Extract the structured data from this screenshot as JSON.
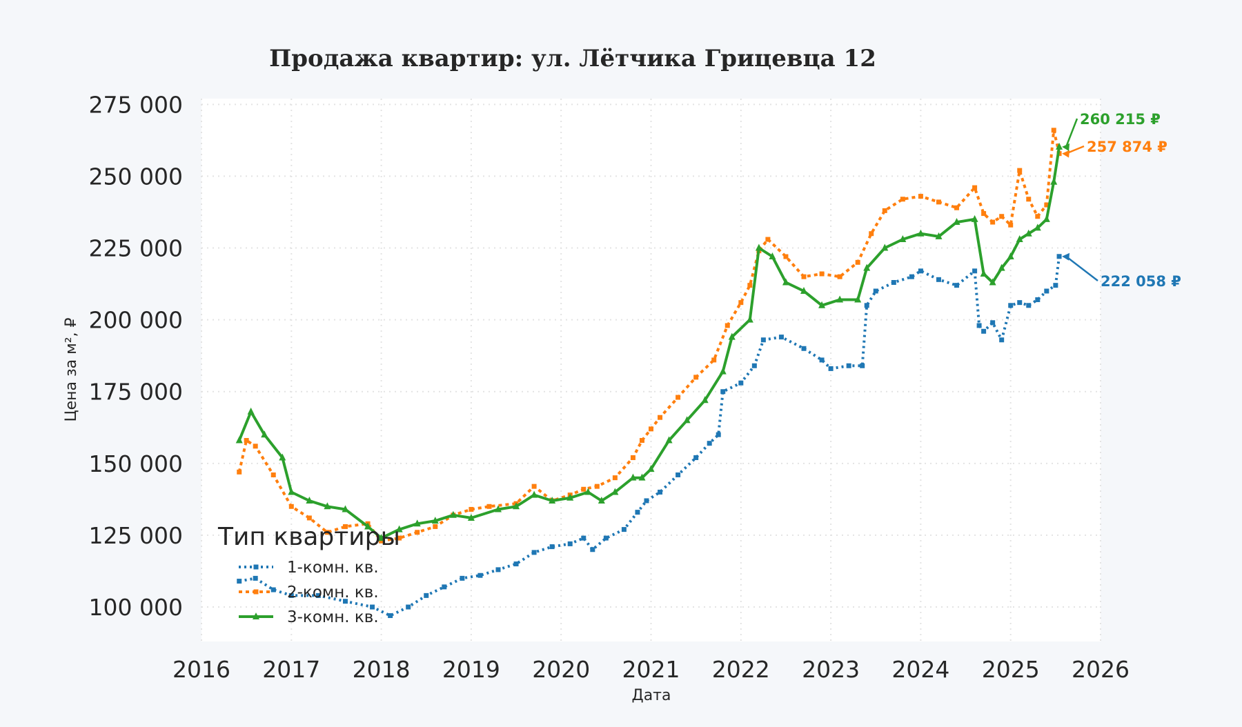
{
  "chart_data": {
    "type": "line",
    "title": "Продажа квартир: ул. Лётчика Грицевца 12",
    "xlabel": "Дата",
    "ylabel": "Цена за м², ₽",
    "xlim": [
      2016,
      2026
    ],
    "ylim": [
      88000,
      277000
    ],
    "x_ticks": [
      "2016",
      "2017",
      "2018",
      "2019",
      "2020",
      "2021",
      "2022",
      "2023",
      "2024",
      "2025",
      "2026"
    ],
    "y_ticks": [
      "100 000",
      "125 000",
      "150 000",
      "175 000",
      "200 000",
      "225 000",
      "250 000",
      "275 000"
    ],
    "grid": true,
    "legend": {
      "title": "Тип квартиры",
      "position": "lower-left"
    },
    "series": [
      {
        "name": "1-комн. кв.",
        "color": "#1f77b4",
        "end_label": "222 058 ₽",
        "x": [
          2016.42,
          2016.6,
          2016.8,
          2017.0,
          2017.3,
          2017.6,
          2017.9,
          2018.1,
          2018.3,
          2018.5,
          2018.7,
          2018.9,
          2019.1,
          2019.3,
          2019.5,
          2019.7,
          2019.9,
          2020.1,
          2020.25,
          2020.35,
          2020.5,
          2020.7,
          2020.85,
          2020.95,
          2021.1,
          2021.3,
          2021.5,
          2021.65,
          2021.75,
          2021.8,
          2022.0,
          2022.15,
          2022.25,
          2022.45,
          2022.7,
          2022.9,
          2023.0,
          2023.2,
          2023.35,
          2023.4,
          2023.5,
          2023.7,
          2023.9,
          2024.0,
          2024.2,
          2024.4,
          2024.6,
          2024.65,
          2024.7,
          2024.8,
          2024.9,
          2025.0,
          2025.1,
          2025.2,
          2025.3,
          2025.4,
          2025.5,
          2025.54
        ],
        "y": [
          109000,
          110000,
          106000,
          104000,
          104000,
          102000,
          100000,
          97000,
          100000,
          104000,
          107000,
          110000,
          111000,
          113000,
          115000,
          119000,
          121000,
          122000,
          124000,
          120000,
          124000,
          127000,
          133000,
          137000,
          140000,
          146000,
          152000,
          157000,
          160000,
          175000,
          178000,
          184000,
          193000,
          194000,
          190000,
          186000,
          183000,
          184000,
          184000,
          205000,
          210000,
          213000,
          215000,
          217000,
          214000,
          212000,
          217000,
          198000,
          196000,
          199000,
          193000,
          205000,
          206000,
          205000,
          207000,
          210000,
          212000,
          222058
        ]
      },
      {
        "name": "2-комн. кв.",
        "color": "#ff7f0e",
        "end_label": "257 874 ₽",
        "x": [
          2016.42,
          2016.5,
          2016.6,
          2016.8,
          2017.0,
          2017.2,
          2017.4,
          2017.6,
          2017.85,
          2018.0,
          2018.2,
          2018.4,
          2018.6,
          2018.8,
          2019.0,
          2019.2,
          2019.5,
          2019.7,
          2019.9,
          2020.1,
          2020.25,
          2020.4,
          2020.6,
          2020.8,
          2020.9,
          2021.0,
          2021.1,
          2021.3,
          2021.5,
          2021.7,
          2021.85,
          2022.0,
          2022.1,
          2022.2,
          2022.3,
          2022.5,
          2022.7,
          2022.9,
          2023.1,
          2023.3,
          2023.45,
          2023.6,
          2023.8,
          2024.0,
          2024.2,
          2024.4,
          2024.6,
          2024.7,
          2024.8,
          2024.9,
          2025.0,
          2025.1,
          2025.2,
          2025.3,
          2025.4,
          2025.48,
          2025.54
        ],
        "y": [
          147000,
          158000,
          156000,
          146000,
          135000,
          131000,
          126000,
          128000,
          129000,
          123000,
          124000,
          126000,
          128000,
          132000,
          134000,
          135000,
          136000,
          142000,
          137000,
          139000,
          141000,
          142000,
          145000,
          152000,
          158000,
          162000,
          166000,
          173000,
          180000,
          186000,
          198000,
          206000,
          212000,
          224000,
          228000,
          222000,
          215000,
          216000,
          215000,
          220000,
          230000,
          238000,
          242000,
          243000,
          241000,
          239000,
          246000,
          237000,
          234000,
          236000,
          233000,
          252000,
          242000,
          236000,
          240000,
          266000,
          257874
        ]
      },
      {
        "name": "3-комн. кв.",
        "color": "#2ca02c",
        "end_label": "260 215 ₽",
        "x": [
          2016.42,
          2016.55,
          2016.7,
          2016.9,
          2017.0,
          2017.2,
          2017.4,
          2017.6,
          2017.85,
          2018.0,
          2018.2,
          2018.4,
          2018.6,
          2018.8,
          2019.0,
          2019.3,
          2019.5,
          2019.7,
          2019.9,
          2020.1,
          2020.3,
          2020.45,
          2020.6,
          2020.8,
          2020.9,
          2021.0,
          2021.2,
          2021.4,
          2021.6,
          2021.8,
          2021.9,
          2022.1,
          2022.2,
          2022.35,
          2022.5,
          2022.7,
          2022.9,
          2023.1,
          2023.3,
          2023.4,
          2023.6,
          2023.8,
          2024.0,
          2024.2,
          2024.4,
          2024.6,
          2024.7,
          2024.8,
          2024.9,
          2025.0,
          2025.1,
          2025.2,
          2025.3,
          2025.4,
          2025.48,
          2025.54
        ],
        "y": [
          158000,
          168000,
          160000,
          152000,
          140000,
          137000,
          135000,
          134000,
          128000,
          124000,
          127000,
          129000,
          130000,
          132000,
          131000,
          134000,
          135000,
          139000,
          137000,
          138000,
          140000,
          137000,
          140000,
          145000,
          145000,
          148000,
          158000,
          165000,
          172000,
          182000,
          194000,
          200000,
          225000,
          222000,
          213000,
          210000,
          205000,
          207000,
          207000,
          218000,
          225000,
          228000,
          230000,
          229000,
          234000,
          235000,
          216000,
          213000,
          218000,
          222000,
          228000,
          230000,
          232000,
          235000,
          248000,
          260215
        ]
      }
    ]
  }
}
